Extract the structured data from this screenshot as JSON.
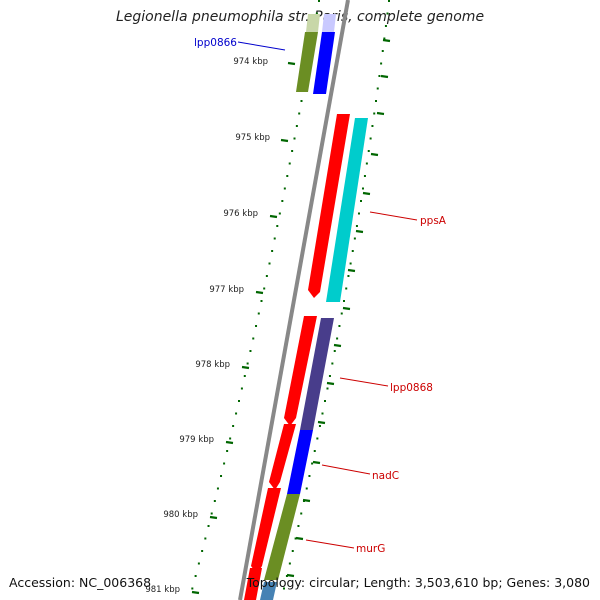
{
  "title": "Legionella pneumophila str. Paris, complete genome",
  "footer": {
    "accession": "Accession: NC_006368",
    "stats": "Topology: circular; Length: 3,503,610 bp; Genes: 3,080"
  },
  "colors": {
    "backbone": "#888888",
    "tick": "#006600",
    "forward_label": "#0000cc",
    "reverse_label": "#cc0000"
  },
  "tick_labels": [
    "974 kbp",
    "975 kbp",
    "976 kbp",
    "977 kbp",
    "978 kbp",
    "979 kbp",
    "980 kbp",
    "981 kbp"
  ],
  "gene_labels": [
    {
      "name": "lpp0866",
      "color": "#0000cc"
    },
    {
      "name": "ppsA",
      "color": "#cc0000"
    },
    {
      "name": "lpp0868",
      "color": "#cc0000"
    },
    {
      "name": "nadC",
      "color": "#cc0000"
    },
    {
      "name": "murG",
      "color": "#cc0000"
    }
  ]
}
